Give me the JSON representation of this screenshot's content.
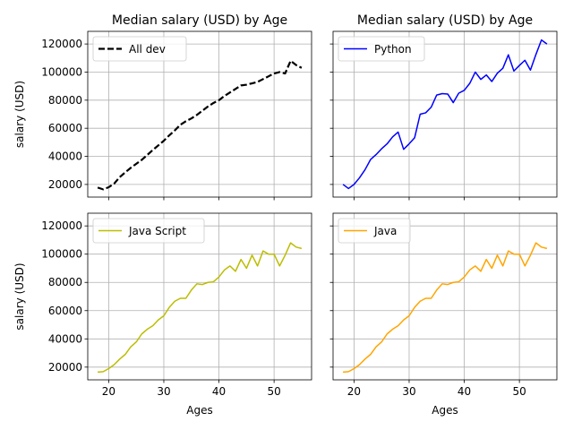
{
  "chart_data": [
    {
      "type": "line",
      "title": "Median salary (USD) by Age",
      "xlabel": "",
      "ylabel": "salary (USD)",
      "xlim": [
        16.2,
        56.8
      ],
      "ylim": [
        11000,
        129000
      ],
      "xticks": [
        20,
        30,
        40,
        50
      ],
      "yticks": [
        20000,
        40000,
        60000,
        80000,
        100000,
        120000
      ],
      "show_xticklabels": false,
      "show_yticklabels": true,
      "grid": true,
      "legend_position": "upper-left",
      "series": [
        {
          "name": "All dev",
          "color": "#000000",
          "line_style": "dashed",
          "x": [
            18,
            19,
            20,
            21,
            22,
            23,
            24,
            25,
            26,
            27,
            28,
            29,
            30,
            31,
            32,
            33,
            34,
            35,
            36,
            37,
            38,
            39,
            40,
            41,
            42,
            43,
            44,
            45,
            46,
            47,
            48,
            49,
            50,
            51,
            52,
            53,
            54,
            55
          ],
          "values": [
            17784,
            16500,
            18012,
            20628,
            25206,
            28607,
            31800,
            34700,
            37500,
            41000,
            44500,
            47800,
            51100,
            55000,
            58500,
            62500,
            65000,
            67000,
            69500,
            72500,
            75500,
            78000,
            80000,
            83000,
            85500,
            88000,
            90500,
            91000,
            92000,
            93000,
            95000,
            97000,
            99000,
            100000,
            99000,
            108000,
            105000,
            103000
          ]
        }
      ]
    },
    {
      "type": "line",
      "title": "Median salary (USD) by Age",
      "xlabel": "",
      "ylabel": "",
      "xlim": [
        16.2,
        56.8
      ],
      "ylim": [
        11000,
        129000
      ],
      "xticks": [
        20,
        30,
        40,
        50
      ],
      "yticks": [
        20000,
        40000,
        60000,
        80000,
        100000,
        120000
      ],
      "show_xticklabels": false,
      "show_yticklabels": false,
      "grid": true,
      "legend_position": "upper-left",
      "series": [
        {
          "name": "Python",
          "color": "#0000ff",
          "line_style": "solid",
          "x": [
            18,
            19,
            20,
            21,
            22,
            23,
            24,
            25,
            26,
            27,
            28,
            29,
            30,
            31,
            32,
            33,
            34,
            35,
            36,
            37,
            38,
            39,
            40,
            41,
            42,
            43,
            44,
            45,
            46,
            47,
            48,
            49,
            50,
            51,
            52,
            53,
            54,
            55
          ],
          "values": [
            20046,
            17100,
            20000,
            24744,
            30500,
            37732,
            41247,
            45372,
            48876,
            53850,
            57287,
            45000,
            48919,
            53280,
            70000,
            71000,
            75000,
            83640,
            84666,
            84392,
            78254,
            85000,
            87038,
            91991,
            100000,
            94796,
            97962,
            93302,
            99240,
            102736,
            112285,
            100771,
            104708,
            108423,
            101407,
            112542,
            122870,
            120000
          ]
        }
      ]
    },
    {
      "type": "line",
      "title": "",
      "xlabel": "Ages",
      "ylabel": "salary (USD)",
      "xlim": [
        16.2,
        56.8
      ],
      "ylim": [
        11000,
        129000
      ],
      "xticks": [
        20,
        30,
        40,
        50
      ],
      "yticks": [
        20000,
        40000,
        60000,
        80000,
        100000,
        120000
      ],
      "show_xticklabels": true,
      "show_yticklabels": true,
      "grid": true,
      "legend_position": "upper-left",
      "series": [
        {
          "name": "Java Script",
          "color": "#bcbd00",
          "line_style": "solid",
          "x": [
            18,
            19,
            20,
            21,
            22,
            23,
            24,
            25,
            26,
            27,
            28,
            29,
            30,
            31,
            32,
            33,
            34,
            35,
            36,
            37,
            38,
            39,
            40,
            41,
            42,
            43,
            44,
            45,
            46,
            47,
            48,
            49,
            50,
            51,
            52,
            53,
            54,
            55
          ],
          "values": [
            16446,
            16791,
            18942,
            21780,
            25704,
            29000,
            34372,
            37810,
            43515,
            46823,
            49293,
            53437,
            56373,
            62375,
            66674,
            68745,
            68746,
            74583,
            79000,
            78508,
            79996,
            80403,
            83820,
            88833,
            91660,
            87892,
            96243,
            90000,
            99313,
            91660,
            102264,
            100000,
            100000,
            91660,
            99240,
            108000,
            105000,
            104000
          ]
        }
      ]
    },
    {
      "type": "line",
      "title": "",
      "xlabel": "Ages",
      "ylabel": "",
      "xlim": [
        16.2,
        56.8
      ],
      "ylim": [
        11000,
        129000
      ],
      "xticks": [
        20,
        30,
        40,
        50
      ],
      "yticks": [
        20000,
        40000,
        60000,
        80000,
        100000,
        120000
      ],
      "show_xticklabels": true,
      "show_yticklabels": false,
      "grid": true,
      "legend_position": "upper-left",
      "series": [
        {
          "name": "Java",
          "color": "#ffa500",
          "line_style": "solid",
          "x": [
            18,
            19,
            20,
            21,
            22,
            23,
            24,
            25,
            26,
            27,
            28,
            29,
            30,
            31,
            32,
            33,
            34,
            35,
            36,
            37,
            38,
            39,
            40,
            41,
            42,
            43,
            44,
            45,
            46,
            47,
            48,
            49,
            50,
            51,
            52,
            53,
            54,
            55
          ],
          "values": [
            16446,
            16791,
            18942,
            21780,
            25704,
            29000,
            34372,
            37810,
            43515,
            46823,
            49293,
            53437,
            56373,
            62375,
            66674,
            68745,
            68746,
            74583,
            79000,
            78508,
            79996,
            80403,
            83820,
            88833,
            91660,
            87892,
            96243,
            90000,
            99313,
            91660,
            102264,
            100000,
            100000,
            91660,
            99240,
            108000,
            105000,
            104000
          ]
        }
      ]
    }
  ]
}
